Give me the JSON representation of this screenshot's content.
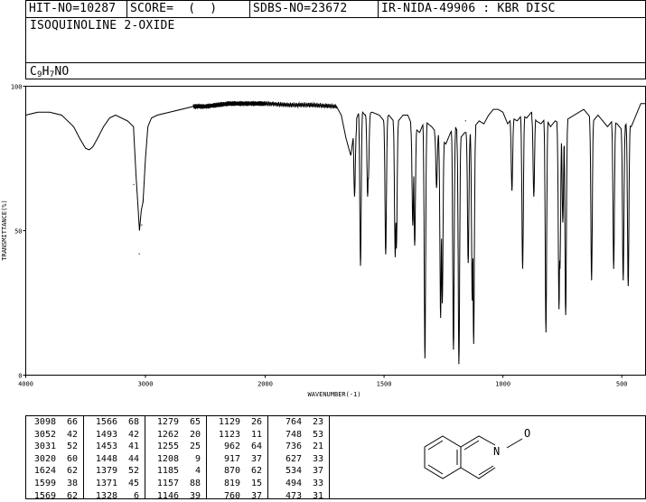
{
  "header": {
    "hit_no": "HIT-NO=10287",
    "score": "SCORE=  (  )",
    "sdbs_no": "SDBS-NO=23672",
    "ir_info": "IR-NIDA-49906 : KBR DISC"
  },
  "compound_name": "ISOQUINOLINE 2-OXIDE",
  "formula": {
    "c": "C",
    "c_n": "9",
    "h": "H",
    "h_n": "7",
    "rest": "NO"
  },
  "structure": {
    "n_label": "N",
    "o_label": "O"
  },
  "chart_data": {
    "type": "line",
    "xlabel": "WAVENUMBER(-1)",
    "ylabel": "TRANSMITTANCE(%)",
    "xlim": [
      4000,
      400
    ],
    "ylim": [
      0,
      100
    ],
    "x_ticks": [
      4000,
      3000,
      2000,
      1500,
      1000,
      500
    ],
    "y_ticks": [
      0,
      50,
      100
    ],
    "x_tick_labels": [
      "4000",
      "3000",
      "2000",
      "1500",
      "1000",
      "500"
    ],
    "y_tick_labels": [
      "0",
      "50",
      "100"
    ],
    "baseline": [
      [
        4000,
        90
      ],
      [
        3900,
        91
      ],
      [
        3800,
        91
      ],
      [
        3700,
        90
      ],
      [
        3600,
        86
      ],
      [
        3550,
        82
      ],
      [
        3500,
        78.5
      ],
      [
        3470,
        78
      ],
      [
        3440,
        79
      ],
      [
        3400,
        82
      ],
      [
        3350,
        86
      ],
      [
        3300,
        89
      ],
      [
        3250,
        90
      ],
      [
        3200,
        89
      ],
      [
        3150,
        88
      ],
      [
        3100,
        86
      ],
      [
        3080,
        70
      ],
      [
        3050,
        50
      ],
      [
        3035,
        57
      ],
      [
        3020,
        60
      ],
      [
        3000,
        75
      ],
      [
        2980,
        86
      ],
      [
        2950,
        89
      ],
      [
        2900,
        90
      ],
      [
        2800,
        91
      ],
      [
        2700,
        92
      ],
      [
        2600,
        93
      ],
      [
        2500,
        93
      ],
      [
        2400,
        93.5
      ],
      [
        2300,
        94
      ],
      [
        2200,
        94
      ],
      [
        2100,
        94
      ],
      [
        2000,
        94
      ],
      [
        1900,
        93.5
      ],
      [
        1800,
        93.5
      ],
      [
        1700,
        93
      ],
      [
        1680,
        90
      ],
      [
        1660,
        82
      ],
      [
        1640,
        76
      ],
      [
        1620,
        88
      ],
      [
        1600,
        92
      ],
      [
        1580,
        90
      ],
      [
        1550,
        91
      ],
      [
        1520,
        90
      ],
      [
        1500,
        88
      ],
      [
        1480,
        90
      ],
      [
        1460,
        88
      ],
      [
        1440,
        88
      ],
      [
        1420,
        90
      ],
      [
        1400,
        90
      ],
      [
        1380,
        86
      ],
      [
        1350,
        84
      ],
      [
        1330,
        88
      ],
      [
        1300,
        86
      ],
      [
        1280,
        84
      ],
      [
        1260,
        82
      ],
      [
        1240,
        80
      ],
      [
        1220,
        84
      ],
      [
        1200,
        86
      ],
      [
        1180,
        82
      ],
      [
        1160,
        84
      ],
      [
        1140,
        84
      ],
      [
        1120,
        86
      ],
      [
        1100,
        88
      ],
      [
        1080,
        87
      ],
      [
        1060,
        90
      ],
      [
        1040,
        92
      ],
      [
        1020,
        92
      ],
      [
        1000,
        91
      ],
      [
        980,
        87
      ],
      [
        960,
        89
      ],
      [
        940,
        88
      ],
      [
        920,
        90
      ],
      [
        900,
        89
      ],
      [
        880,
        91
      ],
      [
        860,
        88
      ],
      [
        840,
        87
      ],
      [
        820,
        89
      ],
      [
        800,
        86
      ],
      [
        780,
        88
      ],
      [
        760,
        87
      ],
      [
        740,
        88
      ],
      [
        720,
        89
      ],
      [
        700,
        90
      ],
      [
        680,
        91
      ],
      [
        660,
        92
      ],
      [
        640,
        90
      ],
      [
        620,
        88
      ],
      [
        600,
        90
      ],
      [
        580,
        88
      ],
      [
        560,
        86
      ],
      [
        540,
        88
      ],
      [
        520,
        87
      ],
      [
        500,
        85
      ],
      [
        480,
        87
      ],
      [
        460,
        86
      ],
      [
        440,
        90
      ],
      [
        420,
        94
      ],
      [
        400,
        94
      ]
    ],
    "peaks": [
      {
        "x": 3098,
        "y": 66
      },
      {
        "x": 3052,
        "y": 42
      },
      {
        "x": 3031,
        "y": 52
      },
      {
        "x": 3020,
        "y": 60
      },
      {
        "x": 1624,
        "y": 62
      },
      {
        "x": 1599,
        "y": 38
      },
      {
        "x": 1569,
        "y": 62
      },
      {
        "x": 1566,
        "y": 68
      },
      {
        "x": 1493,
        "y": 42
      },
      {
        "x": 1453,
        "y": 41
      },
      {
        "x": 1448,
        "y": 44
      },
      {
        "x": 1379,
        "y": 52
      },
      {
        "x": 1371,
        "y": 45
      },
      {
        "x": 1328,
        "y": 6
      },
      {
        "x": 1279,
        "y": 65
      },
      {
        "x": 1262,
        "y": 20
      },
      {
        "x": 1255,
        "y": 25
      },
      {
        "x": 1208,
        "y": 9
      },
      {
        "x": 1185,
        "y": 4
      },
      {
        "x": 1157,
        "y": 88
      },
      {
        "x": 1146,
        "y": 39
      },
      {
        "x": 1129,
        "y": 26
      },
      {
        "x": 1123,
        "y": 11
      },
      {
        "x": 962,
        "y": 64
      },
      {
        "x": 917,
        "y": 37
      },
      {
        "x": 870,
        "y": 62
      },
      {
        "x": 819,
        "y": 15
      },
      {
        "x": 760,
        "y": 37
      },
      {
        "x": 764,
        "y": 23
      },
      {
        "x": 748,
        "y": 53
      },
      {
        "x": 736,
        "y": 21
      },
      {
        "x": 627,
        "y": 33
      },
      {
        "x": 534,
        "y": 37
      },
      {
        "x": 494,
        "y": 33
      },
      {
        "x": 473,
        "y": 31
      }
    ]
  },
  "peak_table": [
    [
      {
        "w": "3098",
        "t": "66"
      },
      {
        "w": "3052",
        "t": "42"
      },
      {
        "w": "3031",
        "t": "52"
      },
      {
        "w": "3020",
        "t": "60"
      },
      {
        "w": "1624",
        "t": "62"
      },
      {
        "w": "1599",
        "t": "38"
      },
      {
        "w": "1569",
        "t": "62"
      }
    ],
    [
      {
        "w": "1566",
        "t": "68"
      },
      {
        "w": "1493",
        "t": "42"
      },
      {
        "w": "1453",
        "t": "41"
      },
      {
        "w": "1448",
        "t": "44"
      },
      {
        "w": "1379",
        "t": "52"
      },
      {
        "w": "1371",
        "t": "45"
      },
      {
        "w": "1328",
        "t": "6"
      }
    ],
    [
      {
        "w": "1279",
        "t": "65"
      },
      {
        "w": "1262",
        "t": "20"
      },
      {
        "w": "1255",
        "t": "25"
      },
      {
        "w": "1208",
        "t": "9"
      },
      {
        "w": "1185",
        "t": "4"
      },
      {
        "w": "1157",
        "t": "88"
      },
      {
        "w": "1146",
        "t": "39"
      }
    ],
    [
      {
        "w": "1129",
        "t": "26"
      },
      {
        "w": "1123",
        "t": "11"
      },
      {
        "w": "962",
        "t": "64"
      },
      {
        "w": "917",
        "t": "37"
      },
      {
        "w": "870",
        "t": "62"
      },
      {
        "w": "819",
        "t": "15"
      },
      {
        "w": "760",
        "t": "37"
      }
    ],
    [
      {
        "w": "764",
        "t": "23"
      },
      {
        "w": "748",
        "t": "53"
      },
      {
        "w": "736",
        "t": "21"
      },
      {
        "w": "627",
        "t": "33"
      },
      {
        "w": "534",
        "t": "37"
      },
      {
        "w": "494",
        "t": "33"
      },
      {
        "w": "473",
        "t": "31"
      }
    ]
  ]
}
